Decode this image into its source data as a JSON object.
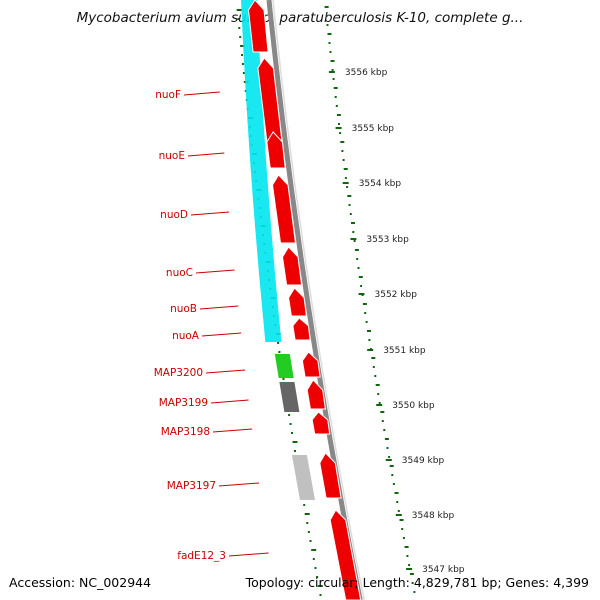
{
  "title": "Mycobacterium avium subsp. paratuberculosis K-10, complete g...",
  "accession": "Accession: NC_002944",
  "summary": "Topology: circular; Length: 4,829,781 bp; Genes: 4,399",
  "colors": {
    "forward_cds": "#ee0000",
    "orthology_band": "#00e5ee",
    "cog_green": "#22cc22",
    "cog_dark_gray": "#666666",
    "cog_light_gray": "#c0c0c0",
    "backbone": "#888888",
    "gc_skew_ticks": "#116611",
    "label_red": "#cc0000"
  },
  "ruler": [
    {
      "label": "3556 kbp"
    },
    {
      "label": "3555 kbp"
    },
    {
      "label": "3554 kbp"
    },
    {
      "label": "3553 kbp"
    },
    {
      "label": "3552 kbp"
    },
    {
      "label": "3551 kbp"
    },
    {
      "label": "3550 kbp"
    },
    {
      "label": "3549 kbp"
    },
    {
      "label": "3548 kbp"
    },
    {
      "label": "3547 kbp"
    }
  ],
  "genes": [
    {
      "name": "nuoF",
      "band": "orthology_band"
    },
    {
      "name": "nuoE",
      "band": "orthology_band"
    },
    {
      "name": "nuoD",
      "band": "orthology_band"
    },
    {
      "name": "nuoC",
      "band": "orthology_band"
    },
    {
      "name": "nuoB",
      "band": "orthology_band"
    },
    {
      "name": "nuoA",
      "band": "orthology_band"
    },
    {
      "name": "MAP3200",
      "band": "cog_green"
    },
    {
      "name": "MAP3199",
      "band": "cog_dark_gray"
    },
    {
      "name": "MAP3198",
      "band": ""
    },
    {
      "name": "MAP3197",
      "band": "cog_light_gray"
    },
    {
      "name": "fadE12_3",
      "band": ""
    }
  ]
}
